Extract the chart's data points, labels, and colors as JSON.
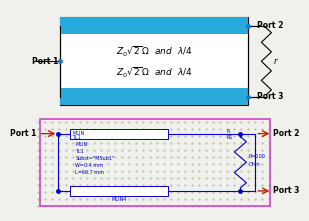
{
  "bg_color": "#f0f0ec",
  "top_panel": {
    "bar_color": "#29aadc",
    "text1": "$Z_0\\sqrt{2}\\,\\Omega$  $\\it{and}$  $\\lambda/4$",
    "text2": "$Z_0\\sqrt{2}\\,\\Omega$  $\\it{and}$  $\\lambda/4$",
    "port1": "Port 1",
    "port2": "Port 2",
    "port3": "Port 3",
    "r_label": "r",
    "dot_color": "#1a7abf",
    "wire_color": "black",
    "text_fontsize": 6.5,
    "port_fontsize": 5.5
  },
  "bottom_panel": {
    "bg": "#ede8d0",
    "dot_color_bg": "#b8b49a",
    "border_color": "#cc44cc",
    "wire_color": "#0000cc",
    "arrow_color": "#bb2200",
    "port1": "Port 1",
    "port2": "Port 2",
    "port3": "Port 3",
    "mlin1_label": "MLIN\nTL1",
    "mlin2_label": "MLIN4",
    "mlin_text": "MLIN\nTL1\nSubst=\"MSub1\"\nW=0.4 mm\nL=66.7 mm",
    "r_text": "R\nR1\nR=100\nOhm",
    "port_fontsize": 5.5,
    "label_fontsize": 3.8
  }
}
